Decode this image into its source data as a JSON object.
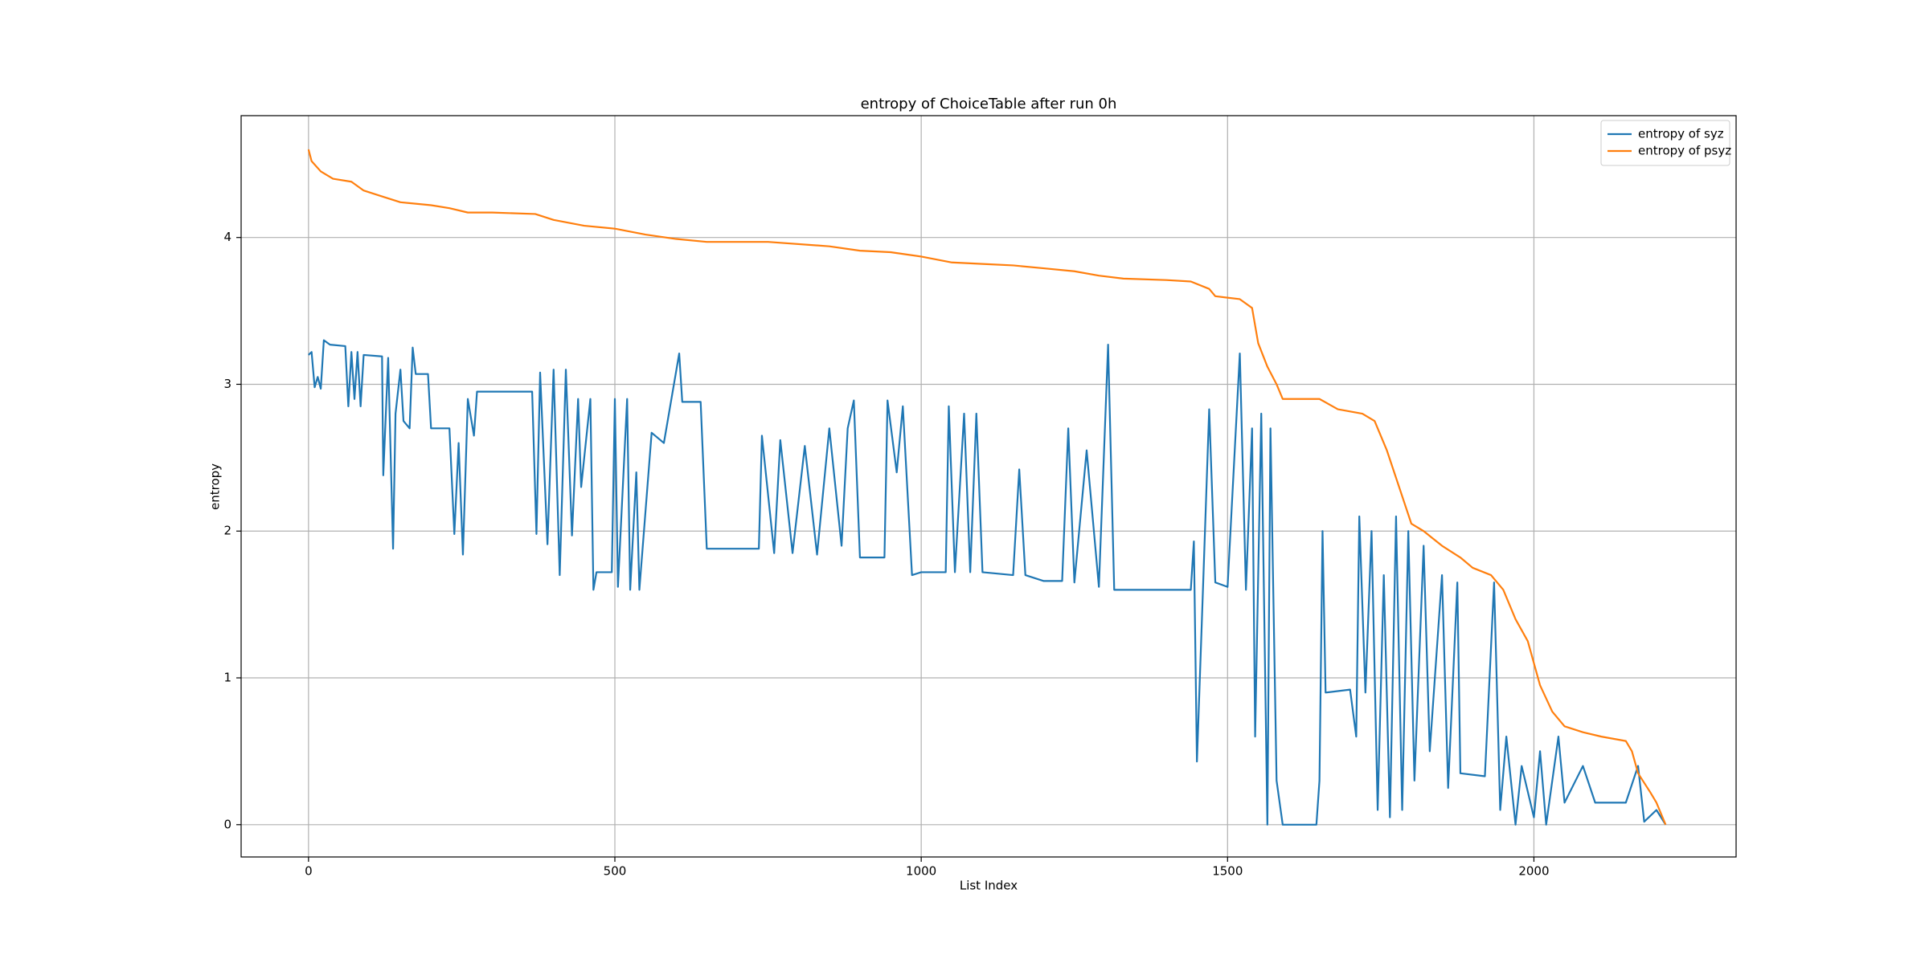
{
  "chart_data": {
    "type": "line",
    "title": "entropy of ChoiceTable after run 0h",
    "x_label": "List Index",
    "y_label": "entropy",
    "xlim": [
      -110,
      2330
    ],
    "ylim": [
      -0.22,
      4.83
    ],
    "xticks": [
      0,
      500,
      1000,
      1500,
      2000
    ],
    "yticks": [
      0,
      1,
      2,
      3,
      4
    ],
    "grid": true,
    "legend": "upper right",
    "series": [
      {
        "name": "entropy of syz",
        "color": "#1f77b4",
        "x": [
          0,
          5,
          10,
          15,
          20,
          25,
          35,
          60,
          65,
          70,
          75,
          80,
          85,
          90,
          120,
          122,
          130,
          138,
          142,
          150,
          155,
          165,
          170,
          175,
          195,
          200,
          230,
          238,
          245,
          252,
          260,
          270,
          275,
          300,
          365,
          372,
          378,
          390,
          400,
          410,
          420,
          430,
          440,
          445,
          460,
          465,
          470,
          495,
          500,
          505,
          520,
          525,
          535,
          540,
          560,
          580,
          605,
          610,
          640,
          650,
          735,
          740,
          760,
          770,
          790,
          810,
          830,
          850,
          870,
          880,
          890,
          900,
          940,
          945,
          960,
          970,
          985,
          1000,
          1040,
          1045,
          1055,
          1070,
          1080,
          1090,
          1100,
          1150,
          1160,
          1170,
          1200,
          1230,
          1240,
          1250,
          1270,
          1290,
          1305,
          1315,
          1440,
          1445,
          1450,
          1460,
          1470,
          1480,
          1500,
          1520,
          1530,
          1540,
          1545,
          1555,
          1565,
          1570,
          1580,
          1590,
          1645,
          1650,
          1655,
          1660,
          1700,
          1710,
          1715,
          1725,
          1735,
          1745,
          1755,
          1765,
          1775,
          1785,
          1795,
          1805,
          1820,
          1830,
          1850,
          1860,
          1875,
          1880,
          1920,
          1935,
          1945,
          1955,
          1970,
          1980,
          2000,
          2010,
          2020,
          2040,
          2050,
          2080,
          2100,
          2150,
          2170,
          2180,
          2200,
          2215
        ],
        "values": [
          3.2,
          3.22,
          2.98,
          3.05,
          2.97,
          3.3,
          3.27,
          3.26,
          2.85,
          3.22,
          2.9,
          3.22,
          2.85,
          3.2,
          3.19,
          2.38,
          3.18,
          1.88,
          2.8,
          3.1,
          2.75,
          2.7,
          3.25,
          3.07,
          3.07,
          2.7,
          2.7,
          1.98,
          2.6,
          1.84,
          2.9,
          2.65,
          2.95,
          2.95,
          2.95,
          1.98,
          3.08,
          1.91,
          3.1,
          1.7,
          3.1,
          1.97,
          2.9,
          2.3,
          2.9,
          1.6,
          1.72,
          1.72,
          2.9,
          1.62,
          2.9,
          1.6,
          2.4,
          1.6,
          2.67,
          2.6,
          3.21,
          2.88,
          2.88,
          1.88,
          1.88,
          2.65,
          1.85,
          2.62,
          1.85,
          2.58,
          1.84,
          2.7,
          1.9,
          2.7,
          2.89,
          1.82,
          1.82,
          2.89,
          2.4,
          2.85,
          1.7,
          1.72,
          1.72,
          2.85,
          1.72,
          2.8,
          1.72,
          2.8,
          1.72,
          1.7,
          2.42,
          1.7,
          1.66,
          1.66,
          2.7,
          1.65,
          2.55,
          1.62,
          3.27,
          1.6,
          1.6,
          1.93,
          0.43,
          1.62,
          2.83,
          1.65,
          1.62,
          3.21,
          1.6,
          2.7,
          0.6,
          2.8,
          0.0,
          2.7,
          0.3,
          0.0,
          0.0,
          0.3,
          2.0,
          0.9,
          0.92,
          0.6,
          2.1,
          0.9,
          2.0,
          0.1,
          1.7,
          0.05,
          2.1,
          0.1,
          2.0,
          0.3,
          1.9,
          0.5,
          1.7,
          0.25,
          1.65,
          0.35,
          0.33,
          1.65,
          0.1,
          0.6,
          0.0,
          0.4,
          0.05,
          0.5,
          0.0,
          0.6,
          0.15,
          0.4,
          0.15,
          0.15,
          0.4,
          0.02,
          0.1,
          0.0
        ]
      },
      {
        "name": "entropy of psyz",
        "color": "#ff7f0e",
        "x": [
          0,
          5,
          20,
          40,
          70,
          90,
          120,
          150,
          200,
          230,
          260,
          300,
          370,
          400,
          450,
          500,
          550,
          600,
          650,
          750,
          850,
          900,
          950,
          1000,
          1050,
          1100,
          1150,
          1200,
          1250,
          1290,
          1330,
          1400,
          1440,
          1470,
          1480,
          1520,
          1540,
          1550,
          1565,
          1580,
          1590,
          1650,
          1680,
          1720,
          1740,
          1760,
          1780,
          1800,
          1820,
          1850,
          1880,
          1900,
          1930,
          1950,
          1970,
          1990,
          2010,
          2030,
          2050,
          2080,
          2110,
          2150,
          2160,
          2170,
          2190,
          2200,
          2210,
          2215
        ],
        "values": [
          4.6,
          4.52,
          4.45,
          4.4,
          4.38,
          4.32,
          4.28,
          4.24,
          4.22,
          4.2,
          4.17,
          4.17,
          4.16,
          4.12,
          4.08,
          4.06,
          4.02,
          3.99,
          3.97,
          3.97,
          3.94,
          3.91,
          3.9,
          3.87,
          3.83,
          3.82,
          3.81,
          3.79,
          3.77,
          3.74,
          3.72,
          3.71,
          3.7,
          3.65,
          3.6,
          3.58,
          3.52,
          3.28,
          3.12,
          3.0,
          2.9,
          2.9,
          2.83,
          2.8,
          2.75,
          2.55,
          2.3,
          2.05,
          2.0,
          1.9,
          1.82,
          1.75,
          1.7,
          1.6,
          1.4,
          1.25,
          0.95,
          0.77,
          0.67,
          0.63,
          0.6,
          0.57,
          0.5,
          0.35,
          0.22,
          0.15,
          0.05,
          0
        ]
      }
    ]
  }
}
